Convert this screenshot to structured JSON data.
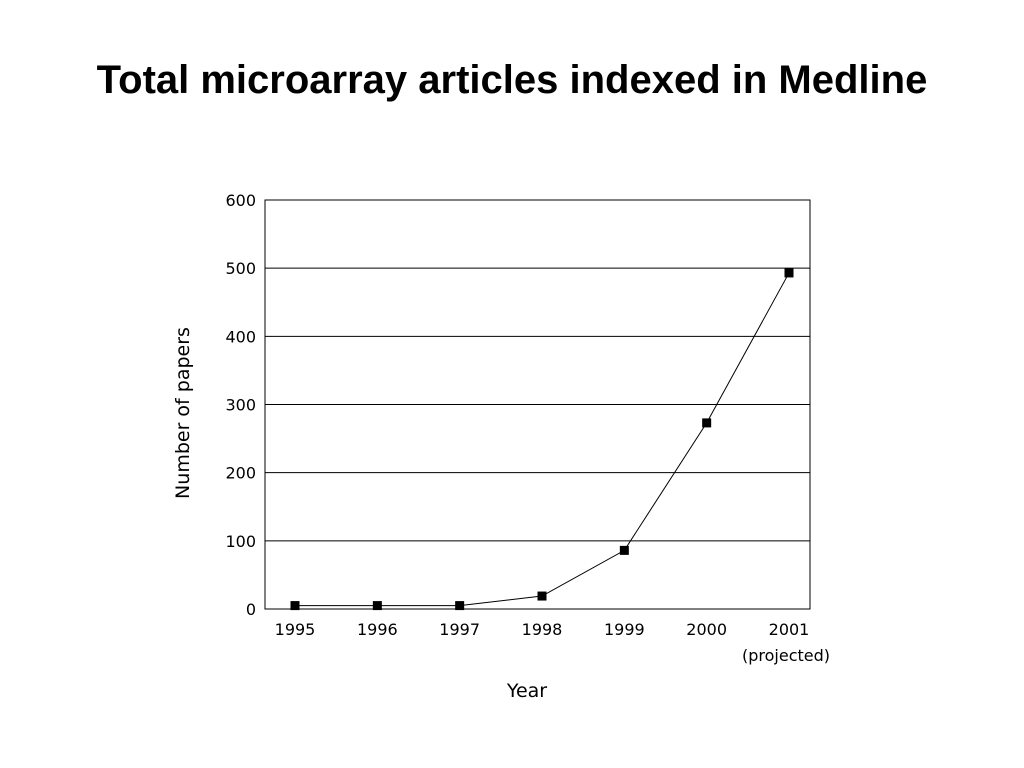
{
  "title": "Total microarray articles indexed in Medline",
  "chart_data": {
    "type": "line",
    "title": "Total microarray articles indexed in Medline",
    "xlabel": "Year",
    "ylabel": "Number of papers",
    "categories": [
      "1995",
      "1996",
      "1997",
      "1998",
      "1999",
      "2000",
      "2001"
    ],
    "x_annotations": [
      {
        "category": "2001",
        "text": "(projected)"
      }
    ],
    "series": [
      {
        "values": [
          5,
          5,
          5,
          19,
          86,
          273,
          493
        ]
      }
    ],
    "ylim": [
      0,
      600
    ],
    "yticks": [
      "0",
      "100",
      "200",
      "300",
      "400",
      "500",
      "600"
    ],
    "grid": "horizontal",
    "marker": "square",
    "line_color": "#000000",
    "marker_color": "#000000"
  }
}
